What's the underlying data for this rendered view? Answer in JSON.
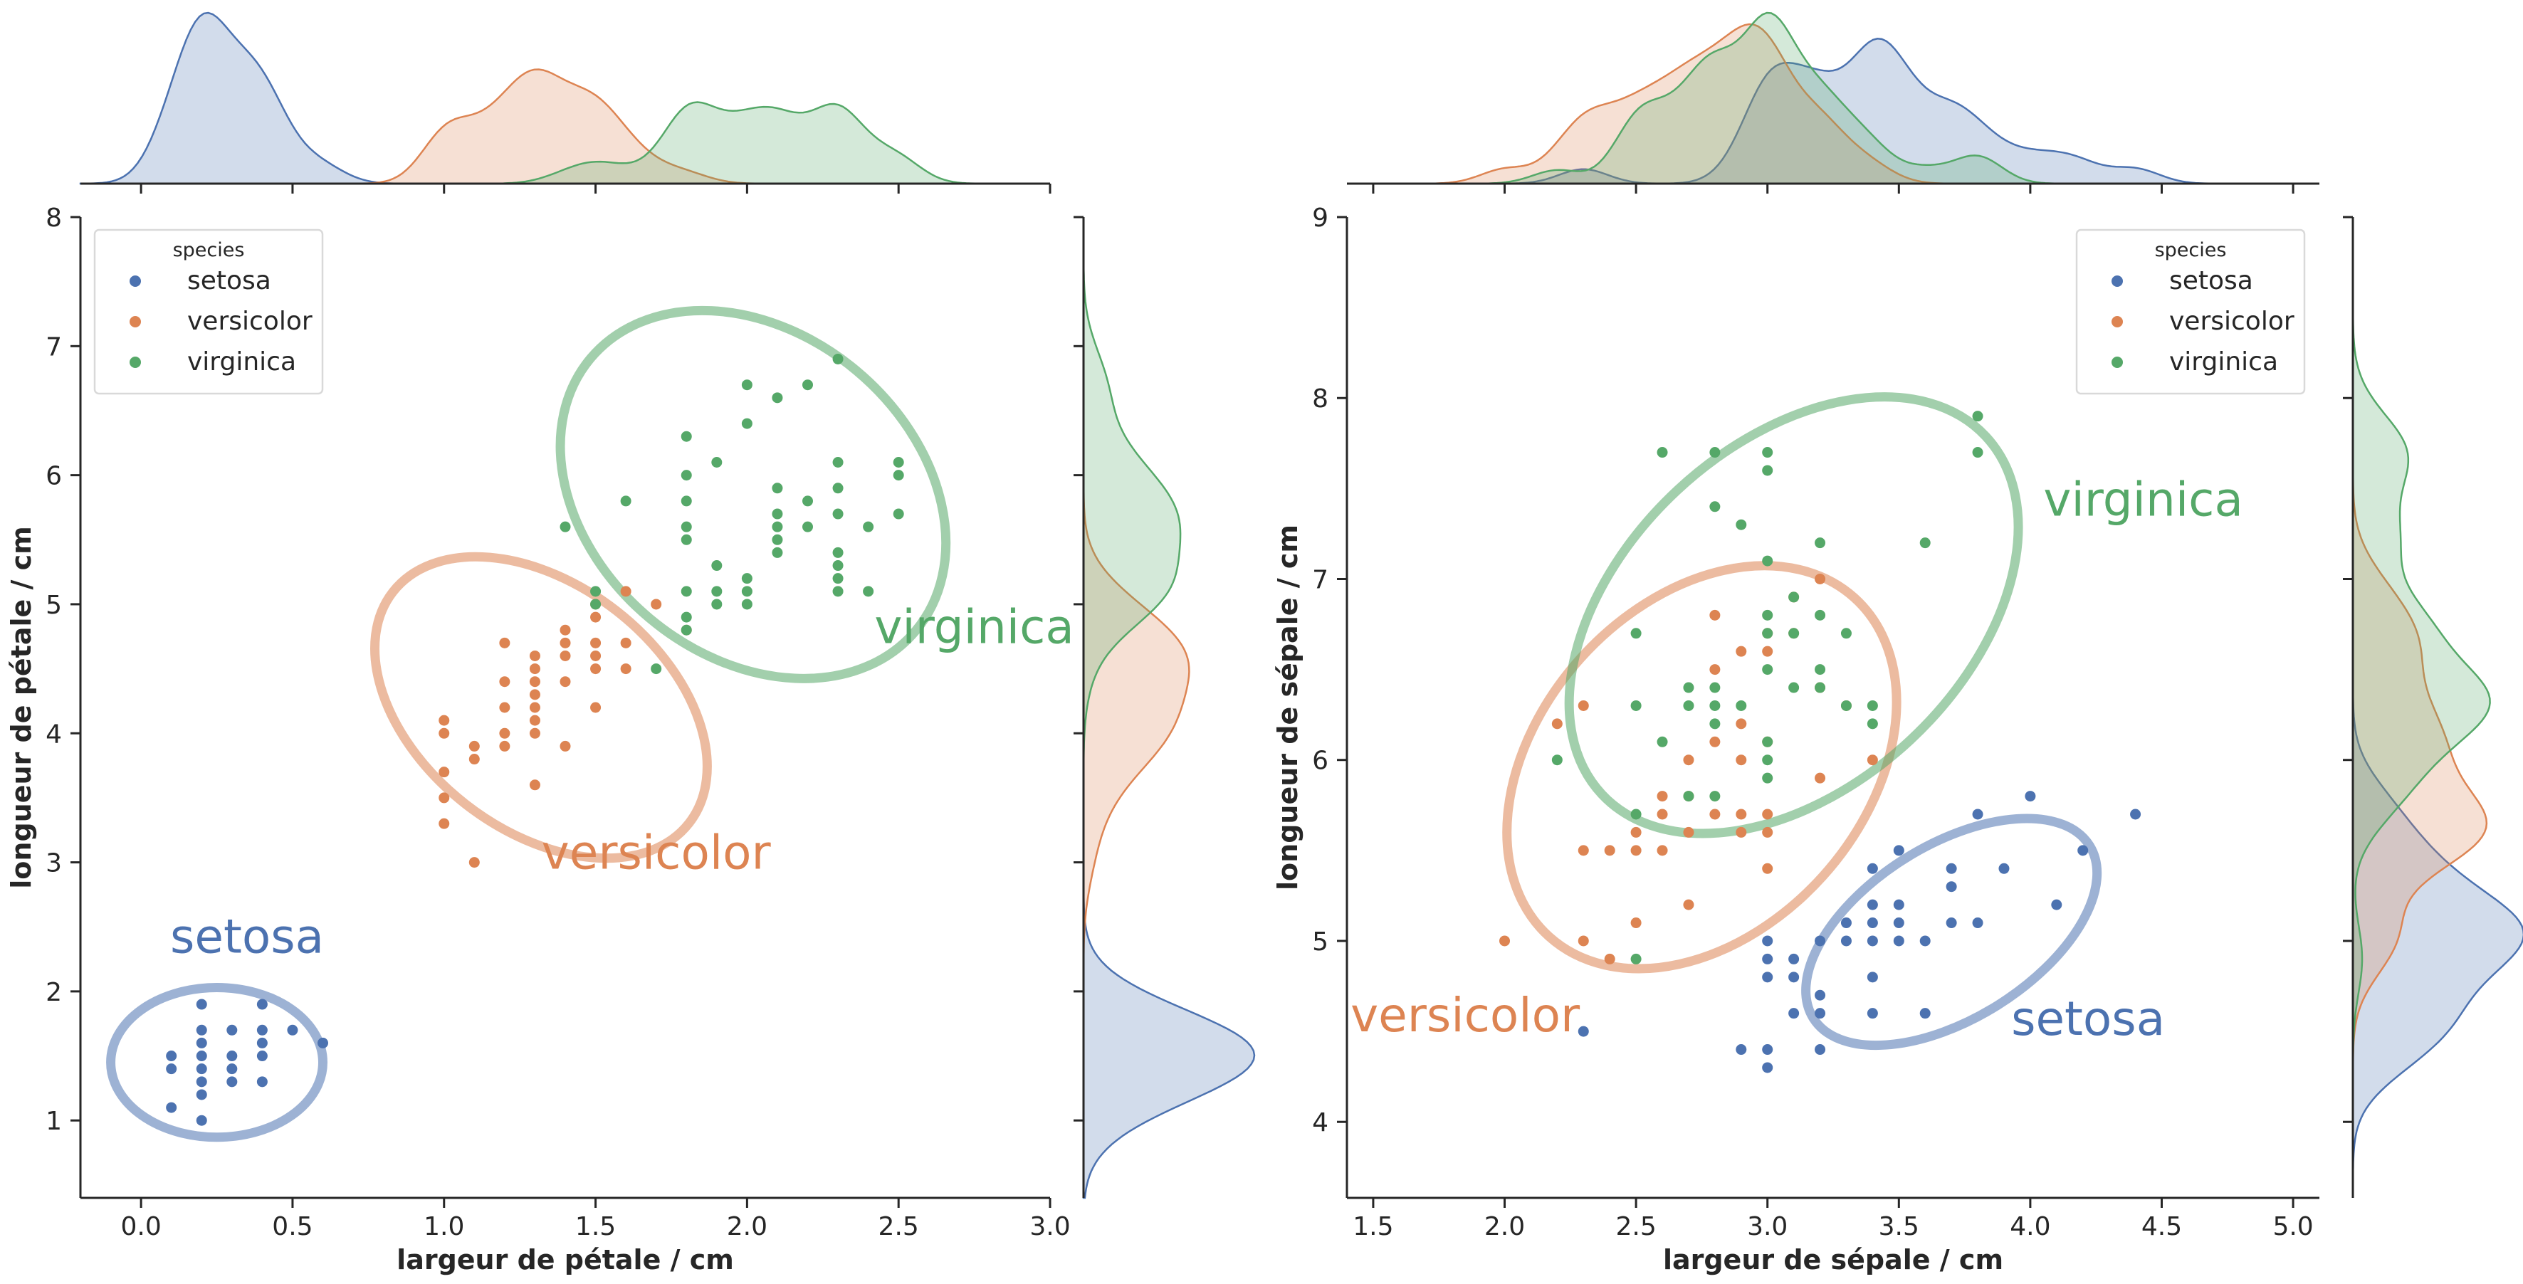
{
  "colors": {
    "setosa": "#4c72b0",
    "versicolor": "#dd8452",
    "virginica": "#55a868",
    "axis": "#262626"
  },
  "legend": {
    "title": "species",
    "entries": [
      "setosa",
      "versicolor",
      "virginica"
    ]
  },
  "chart_data": [
    {
      "type": "scatter",
      "xlabel": "largeur de pétale / cm",
      "ylabel": "longueur de pétale / cm",
      "xlim": [
        -0.2,
        3.0
      ],
      "ylim": [
        0.4,
        8.0
      ],
      "xticks": [
        "0.0",
        "0.5",
        "1.0",
        "1.5",
        "2.0",
        "2.5",
        "3.0"
      ],
      "yticks": [
        "1",
        "2",
        "3",
        "4",
        "5",
        "6",
        "7",
        "8"
      ],
      "legend_position": "top-left",
      "marginals": "kde",
      "annotations": [
        {
          "text": "setosa",
          "species": "setosa",
          "x": 0.35,
          "y": 2.3
        },
        {
          "text": "versicolor",
          "species": "versicolor",
          "x": 1.7,
          "y": 2.95
        },
        {
          "text": "virginica",
          "species": "virginica",
          "x": 2.75,
          "y": 4.7
        }
      ],
      "ellipses": [
        {
          "species": "setosa",
          "cx": 0.25,
          "cy": 1.45,
          "rx": 0.35,
          "ry": 0.58,
          "angle": 0
        },
        {
          "species": "versicolor",
          "cx": 1.32,
          "cy": 4.2,
          "rx": 0.62,
          "ry": 0.95,
          "angle": 38
        },
        {
          "species": "virginica",
          "cx": 2.02,
          "cy": 5.85,
          "rx": 0.7,
          "ry": 1.25,
          "angle": 40
        }
      ],
      "series": [
        {
          "name": "setosa",
          "points": [
            [
              0.1,
              1.5
            ],
            [
              0.1,
              1.4
            ],
            [
              0.1,
              1.1
            ],
            [
              0.2,
              1.9
            ],
            [
              0.2,
              1.7
            ],
            [
              0.2,
              1.6
            ],
            [
              0.2,
              1.5
            ],
            [
              0.2,
              1.4
            ],
            [
              0.2,
              1.3
            ],
            [
              0.2,
              1.2
            ],
            [
              0.2,
              1.0
            ],
            [
              0.3,
              1.7
            ],
            [
              0.3,
              1.5
            ],
            [
              0.3,
              1.4
            ],
            [
              0.3,
              1.3
            ],
            [
              0.4,
              1.9
            ],
            [
              0.4,
              1.7
            ],
            [
              0.4,
              1.6
            ],
            [
              0.4,
              1.5
            ],
            [
              0.4,
              1.3
            ],
            [
              0.5,
              1.7
            ],
            [
              0.6,
              1.6
            ]
          ]
        },
        {
          "name": "versicolor",
          "points": [
            [
              1.0,
              4.1
            ],
            [
              1.0,
              4.0
            ],
            [
              1.0,
              3.7
            ],
            [
              1.0,
              3.5
            ],
            [
              1.0,
              3.3
            ],
            [
              1.1,
              3.9
            ],
            [
              1.1,
              3.8
            ],
            [
              1.1,
              3.0
            ],
            [
              1.2,
              4.7
            ],
            [
              1.2,
              4.4
            ],
            [
              1.2,
              4.2
            ],
            [
              1.2,
              4.0
            ],
            [
              1.2,
              3.9
            ],
            [
              1.3,
              4.6
            ],
            [
              1.3,
              4.5
            ],
            [
              1.3,
              4.4
            ],
            [
              1.3,
              4.3
            ],
            [
              1.3,
              4.2
            ],
            [
              1.3,
              4.1
            ],
            [
              1.3,
              4.0
            ],
            [
              1.3,
              3.6
            ],
            [
              1.4,
              4.8
            ],
            [
              1.4,
              4.7
            ],
            [
              1.4,
              4.6
            ],
            [
              1.4,
              4.4
            ],
            [
              1.4,
              3.9
            ],
            [
              1.5,
              5.0
            ],
            [
              1.5,
              4.9
            ],
            [
              1.5,
              4.7
            ],
            [
              1.5,
              4.6
            ],
            [
              1.5,
              4.5
            ],
            [
              1.5,
              4.2
            ],
            [
              1.6,
              5.1
            ],
            [
              1.6,
              4.7
            ],
            [
              1.6,
              4.5
            ],
            [
              1.7,
              5.0
            ],
            [
              1.8,
              4.8
            ]
          ]
        },
        {
          "name": "virginica",
          "points": [
            [
              1.4,
              5.6
            ],
            [
              1.5,
              5.1
            ],
            [
              1.5,
              5.0
            ],
            [
              1.6,
              5.8
            ],
            [
              1.7,
              4.5
            ],
            [
              1.8,
              6.3
            ],
            [
              1.8,
              6.0
            ],
            [
              1.8,
              5.8
            ],
            [
              1.8,
              5.6
            ],
            [
              1.8,
              5.5
            ],
            [
              1.8,
              5.1
            ],
            [
              1.8,
              4.9
            ],
            [
              1.8,
              4.8
            ],
            [
              1.9,
              6.1
            ],
            [
              1.9,
              5.3
            ],
            [
              1.9,
              5.1
            ],
            [
              1.9,
              5.0
            ],
            [
              2.0,
              6.7
            ],
            [
              2.0,
              6.4
            ],
            [
              2.0,
              5.2
            ],
            [
              2.0,
              5.1
            ],
            [
              2.0,
              5.0
            ],
            [
              2.1,
              6.6
            ],
            [
              2.1,
              5.9
            ],
            [
              2.1,
              5.7
            ],
            [
              2.1,
              5.6
            ],
            [
              2.1,
              5.5
            ],
            [
              2.1,
              5.4
            ],
            [
              2.2,
              6.7
            ],
            [
              2.2,
              5.8
            ],
            [
              2.2,
              5.6
            ],
            [
              2.3,
              6.9
            ],
            [
              2.3,
              6.1
            ],
            [
              2.3,
              5.9
            ],
            [
              2.3,
              5.7
            ],
            [
              2.3,
              5.4
            ],
            [
              2.3,
              5.3
            ],
            [
              2.3,
              5.2
            ],
            [
              2.3,
              5.1
            ],
            [
              2.4,
              5.6
            ],
            [
              2.4,
              5.1
            ],
            [
              2.5,
              6.1
            ],
            [
              2.5,
              6.0
            ],
            [
              2.5,
              5.7
            ]
          ]
        }
      ]
    },
    {
      "type": "scatter",
      "xlabel": "largeur de sépale / cm",
      "ylabel": "longueur de sépale / cm",
      "xlim": [
        1.4,
        5.1
      ],
      "ylim": [
        3.58,
        9.0
      ],
      "xticks": [
        "1.5",
        "2.0",
        "2.5",
        "3.0",
        "3.5",
        "4.0",
        "4.5",
        "5.0"
      ],
      "yticks": [
        "4",
        "5",
        "6",
        "7",
        "8",
        "9"
      ],
      "legend_position": "top-right",
      "marginals": "kde",
      "annotations": [
        {
          "text": "virginica",
          "species": "virginica",
          "x": 4.43,
          "y": 7.35
        },
        {
          "text": "versicolor",
          "species": "versicolor",
          "x": 1.85,
          "y": 4.5
        },
        {
          "text": "setosa",
          "species": "setosa",
          "x": 4.22,
          "y": 4.48
        }
      ],
      "ellipses": [
        {
          "species": "setosa",
          "cx": 3.7,
          "cy": 5.05,
          "rx": 0.33,
          "ry": 0.9,
          "angle": 58
        },
        {
          "species": "versicolor",
          "cx": 2.75,
          "cy": 5.96,
          "rx": 0.62,
          "ry": 1.26,
          "angle": 42
        },
        {
          "species": "virginica",
          "cx": 3.1,
          "cy": 6.8,
          "rx": 0.65,
          "ry": 1.45,
          "angle": 47
        }
      ],
      "series": [
        {
          "name": "setosa",
          "points": [
            [
              2.3,
              4.5
            ],
            [
              2.9,
              4.4
            ],
            [
              3.0,
              4.4
            ],
            [
              3.0,
              4.3
            ],
            [
              3.0,
              4.8
            ],
            [
              3.0,
              4.9
            ],
            [
              3.0,
              5.0
            ],
            [
              3.1,
              4.6
            ],
            [
              3.1,
              4.8
            ],
            [
              3.1,
              4.9
            ],
            [
              3.2,
              4.4
            ],
            [
              3.2,
              4.6
            ],
            [
              3.2,
              4.7
            ],
            [
              3.2,
              5.0
            ],
            [
              3.3,
              5.0
            ],
            [
              3.3,
              5.1
            ],
            [
              3.4,
              4.6
            ],
            [
              3.4,
              4.8
            ],
            [
              3.4,
              5.0
            ],
            [
              3.4,
              5.1
            ],
            [
              3.4,
              5.2
            ],
            [
              3.4,
              5.4
            ],
            [
              3.5,
              5.0
            ],
            [
              3.5,
              5.1
            ],
            [
              3.5,
              5.2
            ],
            [
              3.5,
              5.5
            ],
            [
              3.6,
              4.6
            ],
            [
              3.6,
              5.0
            ],
            [
              3.7,
              5.1
            ],
            [
              3.7,
              5.3
            ],
            [
              3.7,
              5.4
            ],
            [
              3.8,
              5.1
            ],
            [
              3.8,
              5.7
            ],
            [
              3.9,
              5.4
            ],
            [
              4.0,
              5.8
            ],
            [
              4.1,
              5.2
            ],
            [
              4.2,
              5.5
            ],
            [
              4.4,
              5.7
            ]
          ]
        },
        {
          "name": "versicolor",
          "points": [
            [
              2.0,
              5.0
            ],
            [
              2.2,
              6.2
            ],
            [
              2.3,
              5.0
            ],
            [
              2.3,
              5.5
            ],
            [
              2.3,
              6.3
            ],
            [
              2.4,
              4.9
            ],
            [
              2.4,
              5.5
            ],
            [
              2.5,
              5.1
            ],
            [
              2.5,
              5.5
            ],
            [
              2.5,
              5.6
            ],
            [
              2.6,
              5.5
            ],
            [
              2.6,
              5.7
            ],
            [
              2.6,
              5.8
            ],
            [
              2.7,
              5.2
            ],
            [
              2.7,
              5.6
            ],
            [
              2.7,
              5.8
            ],
            [
              2.7,
              6.0
            ],
            [
              2.8,
              5.7
            ],
            [
              2.8,
              6.1
            ],
            [
              2.8,
              6.5
            ],
            [
              2.8,
              6.8
            ],
            [
              2.9,
              5.6
            ],
            [
              2.9,
              5.7
            ],
            [
              2.9,
              6.0
            ],
            [
              2.9,
              6.2
            ],
            [
              2.9,
              6.6
            ],
            [
              3.0,
              5.4
            ],
            [
              3.0,
              5.6
            ],
            [
              3.0,
              5.7
            ],
            [
              3.0,
              6.1
            ],
            [
              3.0,
              6.6
            ],
            [
              3.0,
              6.7
            ],
            [
              3.1,
              6.7
            ],
            [
              3.1,
              6.9
            ],
            [
              3.2,
              5.9
            ],
            [
              3.2,
              6.4
            ],
            [
              3.2,
              7.0
            ],
            [
              3.3,
              6.3
            ],
            [
              3.4,
              6.0
            ]
          ]
        },
        {
          "name": "virginica",
          "points": [
            [
              2.2,
              6.0
            ],
            [
              2.5,
              4.9
            ],
            [
              2.5,
              5.7
            ],
            [
              2.5,
              6.3
            ],
            [
              2.5,
              6.7
            ],
            [
              2.6,
              6.1
            ],
            [
              2.6,
              7.7
            ],
            [
              2.7,
              5.8
            ],
            [
              2.7,
              6.3
            ],
            [
              2.7,
              6.4
            ],
            [
              2.8,
              5.8
            ],
            [
              2.8,
              6.2
            ],
            [
              2.8,
              6.3
            ],
            [
              2.8,
              6.4
            ],
            [
              2.8,
              7.4
            ],
            [
              2.8,
              7.7
            ],
            [
              2.9,
              6.3
            ],
            [
              2.9,
              7.3
            ],
            [
              3.0,
              5.9
            ],
            [
              3.0,
              6.0
            ],
            [
              3.0,
              6.1
            ],
            [
              3.0,
              6.5
            ],
            [
              3.0,
              6.7
            ],
            [
              3.0,
              6.8
            ],
            [
              3.0,
              7.1
            ],
            [
              3.0,
              7.6
            ],
            [
              3.0,
              7.7
            ],
            [
              3.1,
              6.4
            ],
            [
              3.1,
              6.7
            ],
            [
              3.1,
              6.9
            ],
            [
              3.2,
              6.4
            ],
            [
              3.2,
              6.5
            ],
            [
              3.2,
              6.8
            ],
            [
              3.2,
              7.2
            ],
            [
              3.3,
              6.3
            ],
            [
              3.3,
              6.7
            ],
            [
              3.4,
              6.2
            ],
            [
              3.4,
              6.3
            ],
            [
              3.6,
              7.2
            ],
            [
              3.8,
              7.7
            ],
            [
              3.8,
              7.9
            ]
          ]
        }
      ]
    }
  ]
}
